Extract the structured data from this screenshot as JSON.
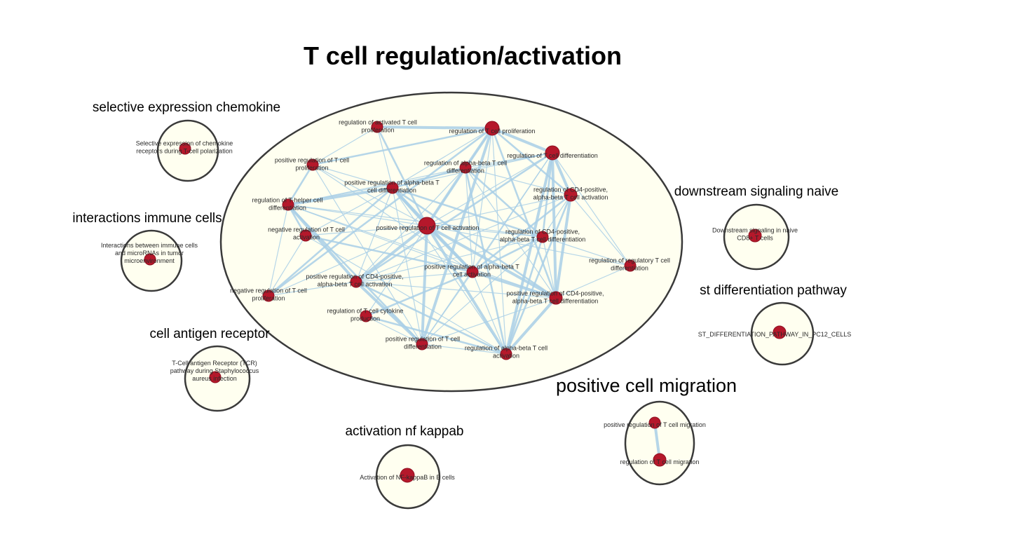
{
  "title": "T cell regulation/activation",
  "colors": {
    "node": "#b5182b",
    "edge": "#a9cfe6",
    "cluster_fill": "#fffff0",
    "cluster_stroke": "#3a3a3a"
  },
  "clusters": [
    {
      "id": "tcell",
      "label": "T cell regulation/activation",
      "nodes": [
        {
          "id": "n1",
          "label": [
            "regulation of activated T cell",
            "proliferation"
          ]
        },
        {
          "id": "n2",
          "label": [
            "regulation of T cell proliferation"
          ]
        },
        {
          "id": "n3",
          "label": [
            "regulation of T cell differentiation"
          ]
        },
        {
          "id": "n4",
          "label": [
            "positive regulation of T cell",
            "proliferation"
          ]
        },
        {
          "id": "n5",
          "label": [
            "regulation of alpha-beta T cell",
            "differentiation"
          ]
        },
        {
          "id": "n6",
          "label": [
            "positive regulation of alpha-beta T",
            "cell differentiation"
          ]
        },
        {
          "id": "n7",
          "label": [
            "regulation of CD4-positive,",
            "alpha-beta T cell activation"
          ]
        },
        {
          "id": "n8",
          "label": [
            "regulation of T-helper cell",
            "differentiation"
          ]
        },
        {
          "id": "n9",
          "label": [
            "positive regulation of T cell activation"
          ]
        },
        {
          "id": "n10",
          "label": [
            "negative regulation of T cell",
            "activation"
          ]
        },
        {
          "id": "n11",
          "label": [
            "regulation of CD4-positive,",
            "alpha-beta T cell differentiation"
          ]
        },
        {
          "id": "n12",
          "label": [
            "regulation of regulatory T cell",
            "differentiation"
          ]
        },
        {
          "id": "n13",
          "label": [
            "positive regulation of alpha-beta T",
            "cell activation"
          ]
        },
        {
          "id": "n14",
          "label": [
            "positive regulation of CD4-positive,",
            "alpha-beta T cell activation"
          ]
        },
        {
          "id": "n15",
          "label": [
            "negative regulation of T cell",
            "proliferation"
          ]
        },
        {
          "id": "n16",
          "label": [
            "positive regulation of CD4-positive,",
            "alpha-beta T cell differentiation"
          ]
        },
        {
          "id": "n17",
          "label": [
            "regulation of T cell cytokine",
            "production"
          ]
        },
        {
          "id": "n18",
          "label": [
            "positive regulation of T cell",
            "differentiation"
          ]
        },
        {
          "id": "n19",
          "label": [
            "regulation of alpha-beta T cell",
            "activation"
          ]
        }
      ]
    },
    {
      "id": "chemokine",
      "label": "selective expression chemokine",
      "nodes": [
        {
          "id": "c1",
          "label": [
            "Selective expression of chemokine",
            "receptors during T-cell polarization"
          ]
        }
      ]
    },
    {
      "id": "immune",
      "label": "interactions immune cells",
      "nodes": [
        {
          "id": "i1",
          "label": [
            "Interactions between immune cells",
            "and microRNAs in tumor",
            "microenvironment"
          ]
        }
      ]
    },
    {
      "id": "antigen",
      "label": "cell antigen receptor",
      "nodes": [
        {
          "id": "a1",
          "label": [
            "T-Cell antigen Receptor (TCR)",
            "pathway during Staphylococcus",
            "aureus infection"
          ]
        }
      ]
    },
    {
      "id": "nfkb",
      "label": "activation nf kappab",
      "nodes": [
        {
          "id": "k1",
          "label": [
            "Activation of NF-kappaB in B cells"
          ]
        }
      ]
    },
    {
      "id": "naive",
      "label": "downstream signaling naive",
      "nodes": [
        {
          "id": "d1",
          "label": [
            "Downstream signaling in naive",
            "CD8+ T cells"
          ]
        }
      ]
    },
    {
      "id": "stdiff",
      "label": "st differentiation pathway",
      "nodes": [
        {
          "id": "s1",
          "label": [
            "ST_DIFFERENTIATION_PATHWAY_IN_PC12_CELLS"
          ]
        }
      ]
    },
    {
      "id": "migration",
      "label": "positive cell migration",
      "nodes": [
        {
          "id": "m1",
          "label": [
            "positive regulation of T cell migration"
          ]
        },
        {
          "id": "m2",
          "label": [
            "regulation of T cell migration"
          ]
        }
      ]
    }
  ],
  "edges": [
    [
      "m1",
      "m2"
    ],
    [
      "n1",
      "n2"
    ],
    [
      "n1",
      "n4"
    ],
    [
      "n1",
      "n9"
    ],
    [
      "n1",
      "n6"
    ],
    [
      "n2",
      "n3"
    ],
    [
      "n2",
      "n4"
    ],
    [
      "n2",
      "n5"
    ],
    [
      "n2",
      "n6"
    ],
    [
      "n2",
      "n7"
    ],
    [
      "n2",
      "n9"
    ],
    [
      "n2",
      "n13"
    ],
    [
      "n2",
      "n16"
    ],
    [
      "n2",
      "n18"
    ],
    [
      "n2",
      "n19"
    ],
    [
      "n2",
      "n15"
    ],
    [
      "n3",
      "n5"
    ],
    [
      "n3",
      "n6"
    ],
    [
      "n3",
      "n7"
    ],
    [
      "n3",
      "n8"
    ],
    [
      "n3",
      "n9"
    ],
    [
      "n3",
      "n11"
    ],
    [
      "n3",
      "n12"
    ],
    [
      "n3",
      "n13"
    ],
    [
      "n3",
      "n16"
    ],
    [
      "n3",
      "n18"
    ],
    [
      "n3",
      "n19"
    ],
    [
      "n3",
      "n14"
    ],
    [
      "n4",
      "n6"
    ],
    [
      "n4",
      "n9"
    ],
    [
      "n4",
      "n8"
    ],
    [
      "n4",
      "n13"
    ],
    [
      "n4",
      "n18"
    ],
    [
      "n5",
      "n6"
    ],
    [
      "n5",
      "n7"
    ],
    [
      "n5",
      "n9"
    ],
    [
      "n5",
      "n11"
    ],
    [
      "n5",
      "n13"
    ],
    [
      "n5",
      "n16"
    ],
    [
      "n5",
      "n19"
    ],
    [
      "n5",
      "n14"
    ],
    [
      "n5",
      "n8"
    ],
    [
      "n6",
      "n8"
    ],
    [
      "n6",
      "n9"
    ],
    [
      "n6",
      "n10"
    ],
    [
      "n6",
      "n11"
    ],
    [
      "n6",
      "n13"
    ],
    [
      "n6",
      "n14"
    ],
    [
      "n6",
      "n16"
    ],
    [
      "n6",
      "n18"
    ],
    [
      "n6",
      "n19"
    ],
    [
      "n6",
      "n15"
    ],
    [
      "n7",
      "n9"
    ],
    [
      "n7",
      "n11"
    ],
    [
      "n7",
      "n13"
    ],
    [
      "n7",
      "n14"
    ],
    [
      "n7",
      "n16"
    ],
    [
      "n7",
      "n19"
    ],
    [
      "n7",
      "n12"
    ],
    [
      "n8",
      "n9"
    ],
    [
      "n8",
      "n10"
    ],
    [
      "n8",
      "n11"
    ],
    [
      "n8",
      "n13"
    ],
    [
      "n8",
      "n14"
    ],
    [
      "n8",
      "n16"
    ],
    [
      "n8",
      "n15"
    ],
    [
      "n8",
      "n18"
    ],
    [
      "n9",
      "n10"
    ],
    [
      "n9",
      "n11"
    ],
    [
      "n9",
      "n13"
    ],
    [
      "n9",
      "n14"
    ],
    [
      "n9",
      "n15"
    ],
    [
      "n9",
      "n16"
    ],
    [
      "n9",
      "n17"
    ],
    [
      "n9",
      "n18"
    ],
    [
      "n9",
      "n19"
    ],
    [
      "n9",
      "n12"
    ],
    [
      "n10",
      "n15"
    ],
    [
      "n10",
      "n13"
    ],
    [
      "n10",
      "n19"
    ],
    [
      "n11",
      "n12"
    ],
    [
      "n11",
      "n13"
    ],
    [
      "n11",
      "n14"
    ],
    [
      "n11",
      "n16"
    ],
    [
      "n11",
      "n19"
    ],
    [
      "n11",
      "n18"
    ],
    [
      "n13",
      "n14"
    ],
    [
      "n13",
      "n16"
    ],
    [
      "n13",
      "n18"
    ],
    [
      "n13",
      "n19"
    ],
    [
      "n13",
      "n17"
    ],
    [
      "n14",
      "n16"
    ],
    [
      "n14",
      "n18"
    ],
    [
      "n14",
      "n19"
    ],
    [
      "n14",
      "n15"
    ],
    [
      "n16",
      "n18"
    ],
    [
      "n16",
      "n19"
    ],
    [
      "n16",
      "n12"
    ],
    [
      "n17",
      "n18"
    ],
    [
      "n17",
      "n19"
    ],
    [
      "n18",
      "n19"
    ]
  ]
}
